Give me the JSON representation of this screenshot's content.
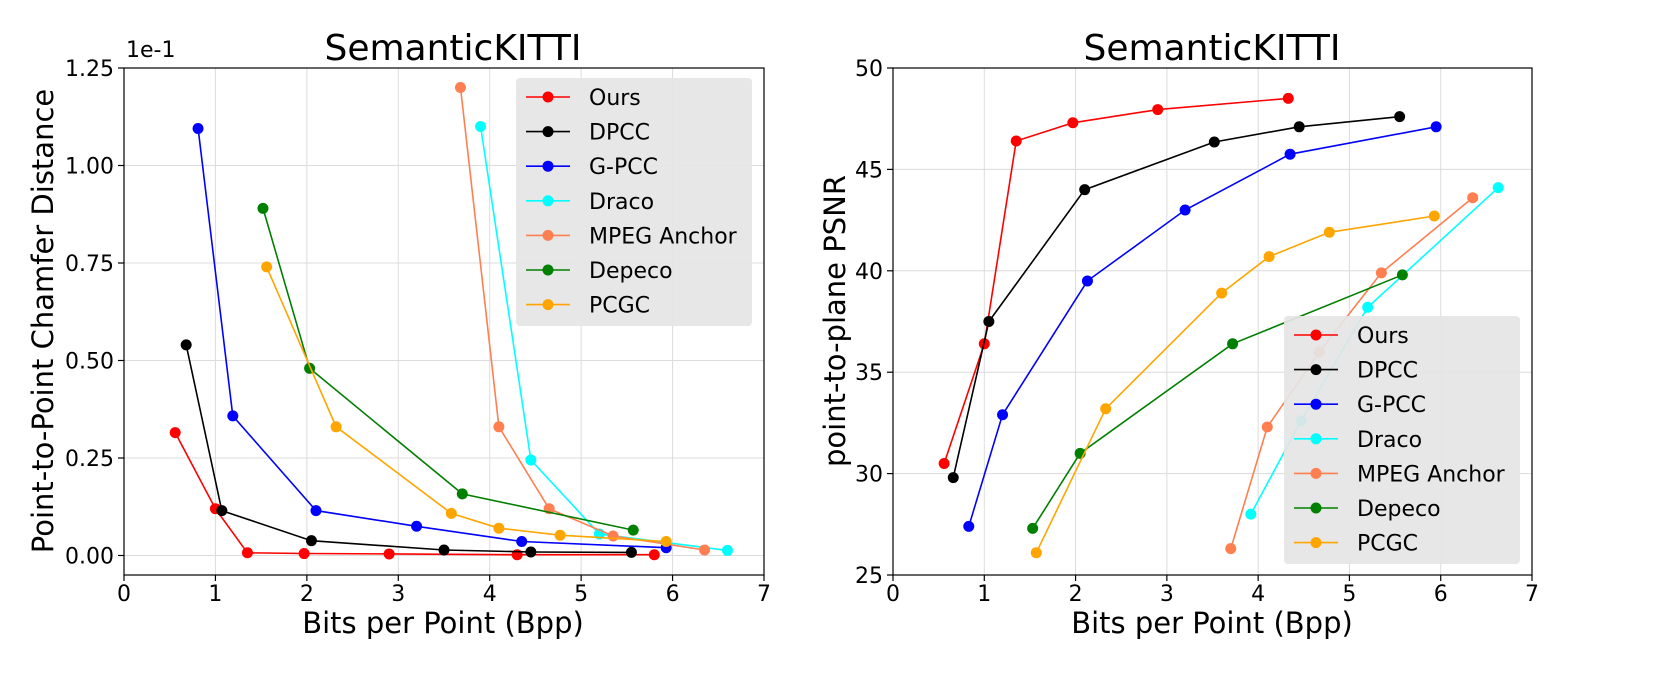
{
  "chart_data": [
    {
      "type": "line",
      "title": "SemanticKITTI",
      "xlabel": "Bits per Point (Bpp)",
      "ylabel": "Point-to-Point Chamfer Distance",
      "offset_label": "1e-1",
      "xlim": [
        0,
        7
      ],
      "ylim": [
        -0.05,
        1.25
      ],
      "xticks": [
        "0",
        "1",
        "2",
        "3",
        "4",
        "5",
        "6",
        "7"
      ],
      "yticks": [
        "0.00",
        "0.25",
        "0.50",
        "0.75",
        "1.00",
        "1.25"
      ],
      "ytick_values": [
        0,
        0.25,
        0.5,
        0.75,
        1.0,
        1.25
      ],
      "legend_position": "top-right",
      "series": [
        {
          "name": "Ours",
          "color": "#ff0000",
          "x": [
            0.56,
            1.0,
            1.35,
            1.97,
            2.9,
            4.3,
            5.8
          ],
          "y": [
            0.315,
            0.12,
            0.007,
            0.005,
            0.004,
            0.002,
            0.002
          ]
        },
        {
          "name": "DPCC",
          "color": "#000000",
          "x": [
            0.68,
            1.07,
            2.05,
            3.5,
            4.45,
            5.55
          ],
          "y": [
            0.54,
            0.115,
            0.038,
            0.014,
            0.009,
            0.008
          ]
        },
        {
          "name": "G-PCC",
          "color": "#0000ff",
          "x": [
            0.81,
            1.19,
            2.1,
            3.2,
            4.35,
            5.93
          ],
          "y": [
            1.095,
            0.358,
            0.115,
            0.075,
            0.036,
            0.02
          ]
        },
        {
          "name": "Draco",
          "color": "#00ffff",
          "x": [
            3.9,
            4.45,
            5.2,
            6.6
          ],
          "y": [
            1.1,
            0.245,
            0.055,
            0.013
          ]
        },
        {
          "name": "MPEG Anchor",
          "color": "#ff7f50",
          "x": [
            3.68,
            4.1,
            4.65,
            5.35,
            6.35
          ],
          "y": [
            1.2,
            0.33,
            0.12,
            0.05,
            0.014
          ]
        },
        {
          "name": "Depeco",
          "color": "#008000",
          "x": [
            1.52,
            2.03,
            3.7,
            5.57
          ],
          "y": [
            0.89,
            0.48,
            0.158,
            0.065
          ]
        },
        {
          "name": "PCGC",
          "color": "#ffa500",
          "x": [
            1.56,
            2.32,
            3.58,
            4.1,
            4.77,
            5.93
          ],
          "y": [
            0.74,
            0.33,
            0.108,
            0.07,
            0.052,
            0.036
          ]
        }
      ]
    },
    {
      "type": "line",
      "title": "SemanticKITTI",
      "xlabel": "Bits per Point (Bpp)",
      "ylabel": "point-to-plane PSNR",
      "xlim": [
        0,
        7
      ],
      "ylim": [
        25,
        50
      ],
      "xticks": [
        "0",
        "1",
        "2",
        "3",
        "4",
        "5",
        "6",
        "7"
      ],
      "yticks": [
        "25",
        "30",
        "35",
        "40",
        "45",
        "50"
      ],
      "ytick_values": [
        25,
        30,
        35,
        40,
        45,
        50
      ],
      "legend_position": "bottom-right",
      "series": [
        {
          "name": "Ours",
          "color": "#ff0000",
          "x": [
            0.56,
            1.0,
            1.35,
            1.97,
            2.9,
            4.33
          ],
          "y": [
            30.5,
            36.4,
            46.4,
            47.3,
            47.95,
            48.5
          ]
        },
        {
          "name": "DPCC",
          "color": "#000000",
          "x": [
            0.66,
            1.05,
            2.1,
            3.52,
            4.45,
            5.55
          ],
          "y": [
            29.8,
            37.5,
            44.0,
            46.35,
            47.1,
            47.6
          ]
        },
        {
          "name": "G-PCC",
          "color": "#0000ff",
          "x": [
            0.83,
            1.2,
            2.13,
            3.2,
            4.35,
            5.95
          ],
          "y": [
            27.4,
            32.9,
            39.5,
            43.0,
            45.75,
            47.1
          ]
        },
        {
          "name": "Draco",
          "color": "#00ffff",
          "x": [
            3.92,
            4.47,
            5.2,
            6.63
          ],
          "y": [
            28.0,
            32.6,
            38.2,
            44.1
          ]
        },
        {
          "name": "MPEG Anchor",
          "color": "#ff7f50",
          "x": [
            3.7,
            4.1,
            4.67,
            5.35,
            6.35
          ],
          "y": [
            26.3,
            32.3,
            36.0,
            39.9,
            43.6
          ]
        },
        {
          "name": "Depeco",
          "color": "#008000",
          "x": [
            1.53,
            2.05,
            3.72,
            5.58
          ],
          "y": [
            27.3,
            31.0,
            36.4,
            39.8
          ]
        },
        {
          "name": "PCGC",
          "color": "#ffa500",
          "x": [
            1.57,
            2.33,
            3.6,
            4.12,
            4.78,
            5.93
          ],
          "y": [
            26.1,
            33.2,
            38.9,
            40.7,
            41.9,
            42.7
          ]
        }
      ]
    }
  ]
}
